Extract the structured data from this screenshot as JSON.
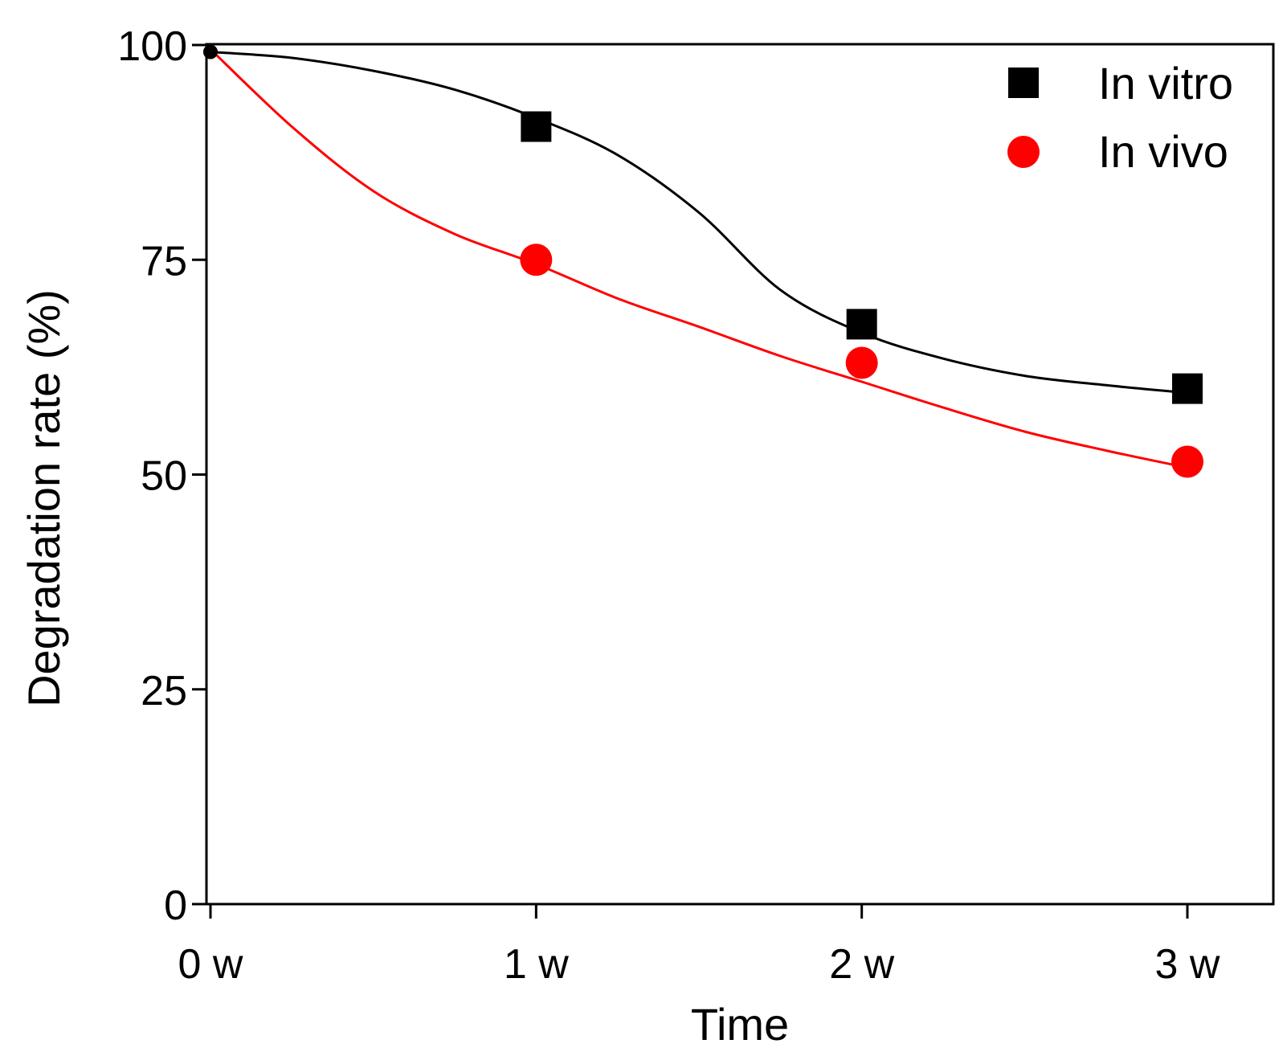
{
  "chart_data": {
    "type": "line",
    "title": "",
    "xlabel": "Time",
    "ylabel": "Degradation rate (%)",
    "categories": [
      "0 w",
      "1 w",
      "2 w",
      "3 w"
    ],
    "x": [
      0,
      1,
      2,
      3
    ],
    "xlim": [
      0,
      3.25
    ],
    "ylim": [
      0,
      100
    ],
    "yticks": [
      0,
      25,
      50,
      75,
      100
    ],
    "grid": false,
    "legend_position": "top-right",
    "series": [
      {
        "name": "In vitro",
        "marker": "square",
        "color": "#000000",
        "values": [
          99.2,
          90.5,
          67.5,
          60.0
        ],
        "fit": [
          [
            0,
            99.2
          ],
          [
            0.25,
            98.5
          ],
          [
            0.5,
            97
          ],
          [
            0.75,
            94.8
          ],
          [
            1,
            91.5
          ],
          [
            1.25,
            87.2
          ],
          [
            1.5,
            80.5
          ],
          [
            1.75,
            71.5
          ],
          [
            2,
            66.5
          ],
          [
            2.25,
            63.5
          ],
          [
            2.5,
            61.5
          ],
          [
            2.75,
            60.4
          ],
          [
            3,
            59.5
          ]
        ]
      },
      {
        "name": "In vivo",
        "marker": "circle",
        "color": "#ff0000",
        "values": [
          99.2,
          75.0,
          63.0,
          51.5
        ],
        "fit": [
          [
            0,
            99.5
          ],
          [
            0.25,
            90.5
          ],
          [
            0.5,
            83
          ],
          [
            0.75,
            78
          ],
          [
            1,
            74.5
          ],
          [
            1.25,
            70.5
          ],
          [
            1.5,
            67.2
          ],
          [
            1.75,
            63.8
          ],
          [
            2,
            60.8
          ],
          [
            2.25,
            57.8
          ],
          [
            2.5,
            55
          ],
          [
            2.75,
            52.8
          ],
          [
            3,
            50.8
          ]
        ]
      }
    ]
  }
}
